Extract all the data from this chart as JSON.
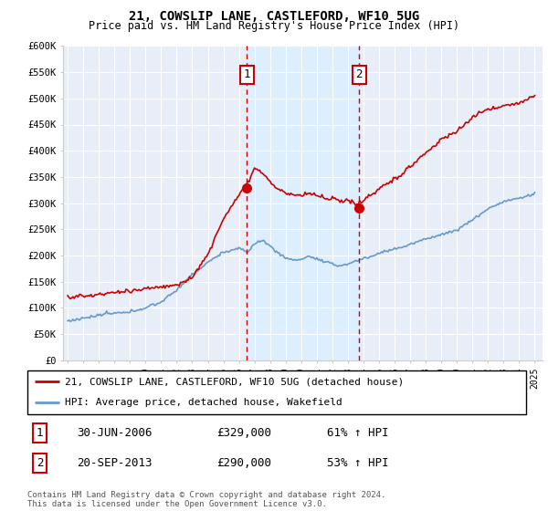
{
  "title": "21, COWSLIP LANE, CASTLEFORD, WF10 5UG",
  "subtitle": "Price paid vs. HM Land Registry's House Price Index (HPI)",
  "ylim": [
    0,
    600000
  ],
  "yticks": [
    0,
    50000,
    100000,
    150000,
    200000,
    250000,
    300000,
    350000,
    400000,
    450000,
    500000,
    550000,
    600000
  ],
  "ytick_labels": [
    "£0",
    "£50K",
    "£100K",
    "£150K",
    "£200K",
    "£250K",
    "£300K",
    "£350K",
    "£400K",
    "£450K",
    "£500K",
    "£550K",
    "£600K"
  ],
  "sale1_date": 2006.5,
  "sale1_price": 329000,
  "sale1_label": "1",
  "sale1_date_str": "30-JUN-2006",
  "sale1_price_str": "£329,000",
  "sale1_hpi": "61% ↑ HPI",
  "sale2_date": 2013.72,
  "sale2_price": 290000,
  "sale2_label": "2",
  "sale2_date_str": "20-SEP-2013",
  "sale2_price_str": "£290,000",
  "sale2_hpi": "53% ↑ HPI",
  "property_color": "#cc0000",
  "hpi_color": "#6699cc",
  "shading_color": "#ddeeff",
  "vline_color": "#cc0000",
  "dot_color": "#cc0000",
  "legend_property": "21, COWSLIP LANE, CASTLEFORD, WF10 5UG (detached house)",
  "legend_hpi": "HPI: Average price, detached house, Wakefield",
  "footer": "Contains HM Land Registry data © Crown copyright and database right 2024.\nThis data is licensed under the Open Government Licence v3.0.",
  "background_color": "#ffffff",
  "plot_bg_color": "#e8eef8",
  "grid_color": "#ffffff"
}
